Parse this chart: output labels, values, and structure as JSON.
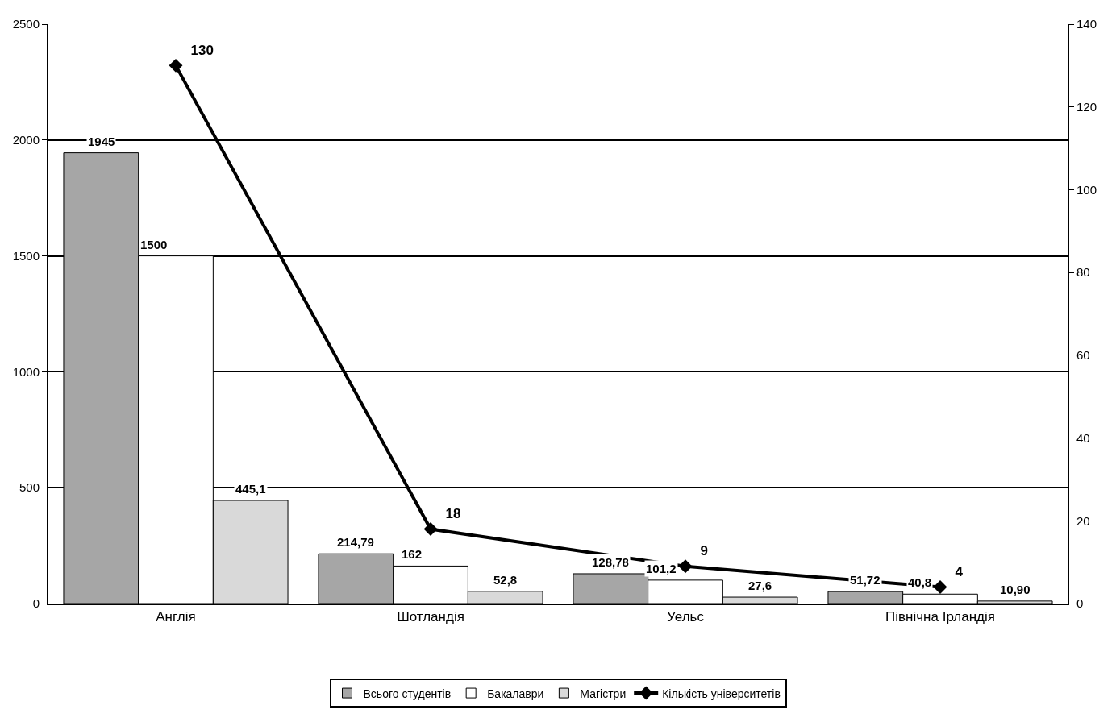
{
  "chart_data": {
    "type": "bar",
    "categories": [
      "Англія",
      "Шотландія",
      "Уельс",
      "Північна Ірландія"
    ],
    "series": [
      {
        "name": "Всього студентів",
        "color": "#a6a6a6",
        "values": [
          1945,
          214.79,
          128.78,
          51.72
        ],
        "value_labels": [
          "1945",
          "214,79",
          "128,78",
          "51,72"
        ]
      },
      {
        "name": "Бакалаври",
        "color": "#ffffff",
        "values": [
          1500,
          162,
          101.2,
          40.8
        ],
        "value_labels": [
          "1500",
          "162",
          "101,2",
          "40,8"
        ]
      },
      {
        "name": "Магістри",
        "color": "#d9d9d9",
        "values": [
          445.1,
          52.8,
          27.6,
          10.9
        ],
        "value_labels": [
          "445,1",
          "52,8",
          "27,6",
          "10,90"
        ]
      },
      {
        "name": "Кількість університетів",
        "type": "line",
        "axis": "y2",
        "color": "#000000",
        "marker": "diamond",
        "line_style": "solid",
        "values": [
          130,
          18,
          9,
          4
        ],
        "value_labels": [
          "130",
          "18",
          "9",
          "4"
        ]
      }
    ],
    "ylim": [
      0,
      2500
    ],
    "yticks": [
      0,
      500,
      1000,
      1500,
      2000,
      2500
    ],
    "y2lim": [
      0,
      140
    ],
    "y2ticks": [
      0,
      20,
      40,
      60,
      80,
      100,
      120,
      140
    ],
    "grid": "y",
    "legend": "bottom"
  }
}
